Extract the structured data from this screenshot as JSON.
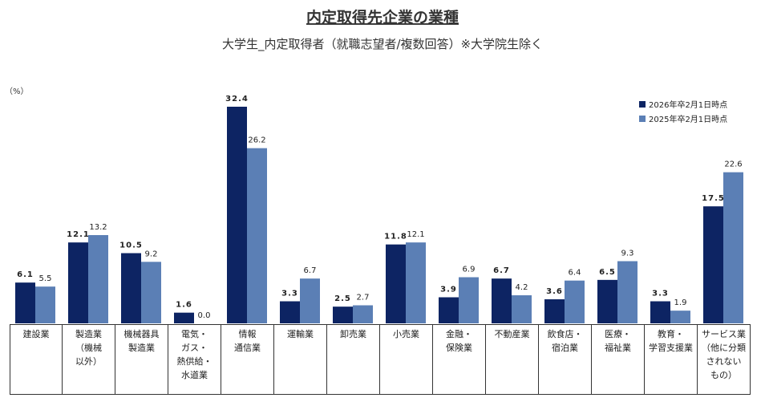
{
  "chart_data": {
    "type": "bar",
    "title": "内定取得先企業の業種",
    "subtitle": "大学生_内定取得者（就職志望者/複数回答）※大学院生除く",
    "unit_label": "（%）",
    "categories": [
      "建設業",
      "製造業\n（機械\n以外）",
      "機械器具\n製造業",
      "電気・\nガス・\n熱供給・\n水道業",
      "情報\n通信業",
      "運輸業",
      "卸売業",
      "小売業",
      "金融・\n保険業",
      "不動産業",
      "飲食店・\n宿泊業",
      "医療・\n福祉業",
      "教育・\n学習支援業",
      "サービス業\n（他に分類\nされない\nもの）"
    ],
    "series": [
      {
        "name": "2026年卒2月1日時点",
        "color": "#0d2463",
        "values": [
          6.1,
          12.1,
          10.5,
          1.6,
          32.4,
          3.3,
          2.5,
          11.8,
          3.9,
          6.7,
          3.6,
          6.5,
          3.3,
          17.5
        ]
      },
      {
        "name": "2025年卒2月1日時点",
        "color": "#5b7fb5",
        "values": [
          5.5,
          13.2,
          9.2,
          0.0,
          26.2,
          6.7,
          2.7,
          12.1,
          6.9,
          4.2,
          6.4,
          9.3,
          1.9,
          22.6
        ],
        "value_labels": [
          "5.5",
          "13.2",
          "9.2",
          "0.0",
          "26.2",
          "6.7",
          "2.7",
          "12.1",
          "6.9",
          "4.2",
          "6.4",
          "9.3",
          "1.9",
          "22.6"
        ]
      }
    ]
  }
}
